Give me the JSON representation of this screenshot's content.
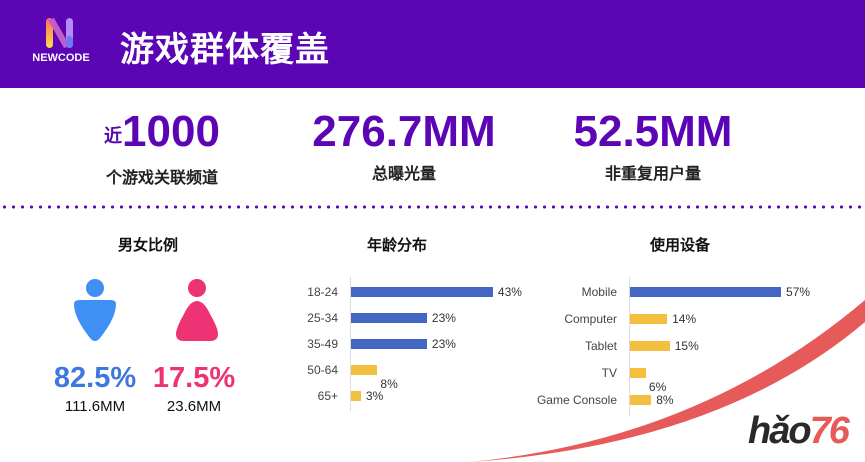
{
  "header": {
    "logo_text": "NEWCODE",
    "title": "游戏群体覆盖",
    "bg_color": "#5b05b5"
  },
  "stats": [
    {
      "prefix": "近",
      "value": "1000",
      "label": "个游戏关联频道"
    },
    {
      "prefix": "",
      "value": "276.7MM",
      "label": "总曝光量"
    },
    {
      "prefix": "",
      "value": "52.5MM",
      "label": "非重复用户量"
    }
  ],
  "gender": {
    "title": "男女比例",
    "male": {
      "percent": "82.5%",
      "count": "111.6MM",
      "color": "#3f8ff5"
    },
    "female": {
      "percent": "17.5%",
      "count": "23.6MM",
      "color": "#ee3374"
    }
  },
  "chart_data": [
    {
      "type": "bar",
      "orientation": "horizontal",
      "title": "年龄分布",
      "categories": [
        "18-24",
        "25-34",
        "35-49",
        "50-64",
        "65+"
      ],
      "values": [
        43,
        23,
        23,
        8,
        3
      ],
      "value_labels": [
        "43%",
        "23%",
        "23%",
        "8%",
        "3%"
      ],
      "colors": [
        "#4467c4",
        "#4467c4",
        "#4467c4",
        "#f3bf3f",
        "#f3bf3f"
      ]
    },
    {
      "type": "bar",
      "orientation": "horizontal",
      "title": "使用设备",
      "categories": [
        "Mobile",
        "Computer",
        "Tablet",
        "TV",
        "Game Console"
      ],
      "values": [
        57,
        14,
        15,
        6,
        8
      ],
      "value_labels": [
        "57%",
        "14%",
        "15%",
        "6%",
        "8%"
      ],
      "colors": [
        "#4467c4",
        "#f3bf3f",
        "#f3bf3f",
        "#f3bf3f",
        "#f3bf3f"
      ]
    }
  ],
  "watermark": {
    "text_main": "hǎo",
    "text_accent": "76"
  }
}
